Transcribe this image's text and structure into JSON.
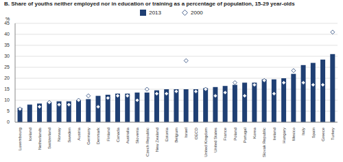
{
  "chart_data": {
    "type": "bar",
    "title": "B. Share of youths neither employed nor in education or training as a percentage of population, 15-29 year-olds",
    "y_label": "%",
    "categories": [
      "Luxembourg",
      "Iceland",
      "Netherlands",
      "Switzerland",
      "Norway",
      "Sweden",
      "Austria",
      "Germany",
      "Denmark",
      "Finland",
      "Canada",
      "Australia",
      "Slovenia",
      "Czech Republic",
      "New Zealand",
      "Estonia",
      "Belgium",
      "Israel",
      "OECD",
      "United Kingdom",
      "United States",
      "France",
      "Poland",
      "Portugal",
      "Korea",
      "Slovak Republic",
      "Ireland",
      "Hungary",
      "Mexico",
      "Italy",
      "Spain",
      "Greece",
      "Turkey"
    ],
    "series": [
      {
        "name": "2013",
        "type": "bar",
        "color": "#1f3f73",
        "values": [
          6.5,
          8,
          8.5,
          9,
          9.5,
          9.5,
          10,
          10.5,
          12,
          12.5,
          13,
          13,
          13.5,
          13.5,
          14.5,
          15,
          15,
          15,
          15,
          15.5,
          16,
          16.5,
          17,
          18,
          18,
          19.5,
          19.5,
          20,
          22,
          26,
          27,
          28.5,
          31
        ]
      },
      {
        "name": "2000",
        "type": "scatter",
        "marker": "diamond",
        "color": "#ffffff",
        "values": [
          6,
          null,
          7,
          9,
          8,
          8,
          10,
          12,
          7,
          11,
          12,
          12,
          10,
          15,
          13,
          13,
          14,
          28,
          14,
          15,
          12,
          13.5,
          18,
          12,
          17,
          19,
          13,
          18,
          23.5,
          18,
          17,
          17,
          41
        ]
      }
    ],
    "ylim": [
      0,
      45
    ],
    "yticks": [
      0,
      5,
      10,
      15,
      20,
      25,
      30,
      35,
      40,
      45
    ],
    "grid": true,
    "legend": "top"
  }
}
